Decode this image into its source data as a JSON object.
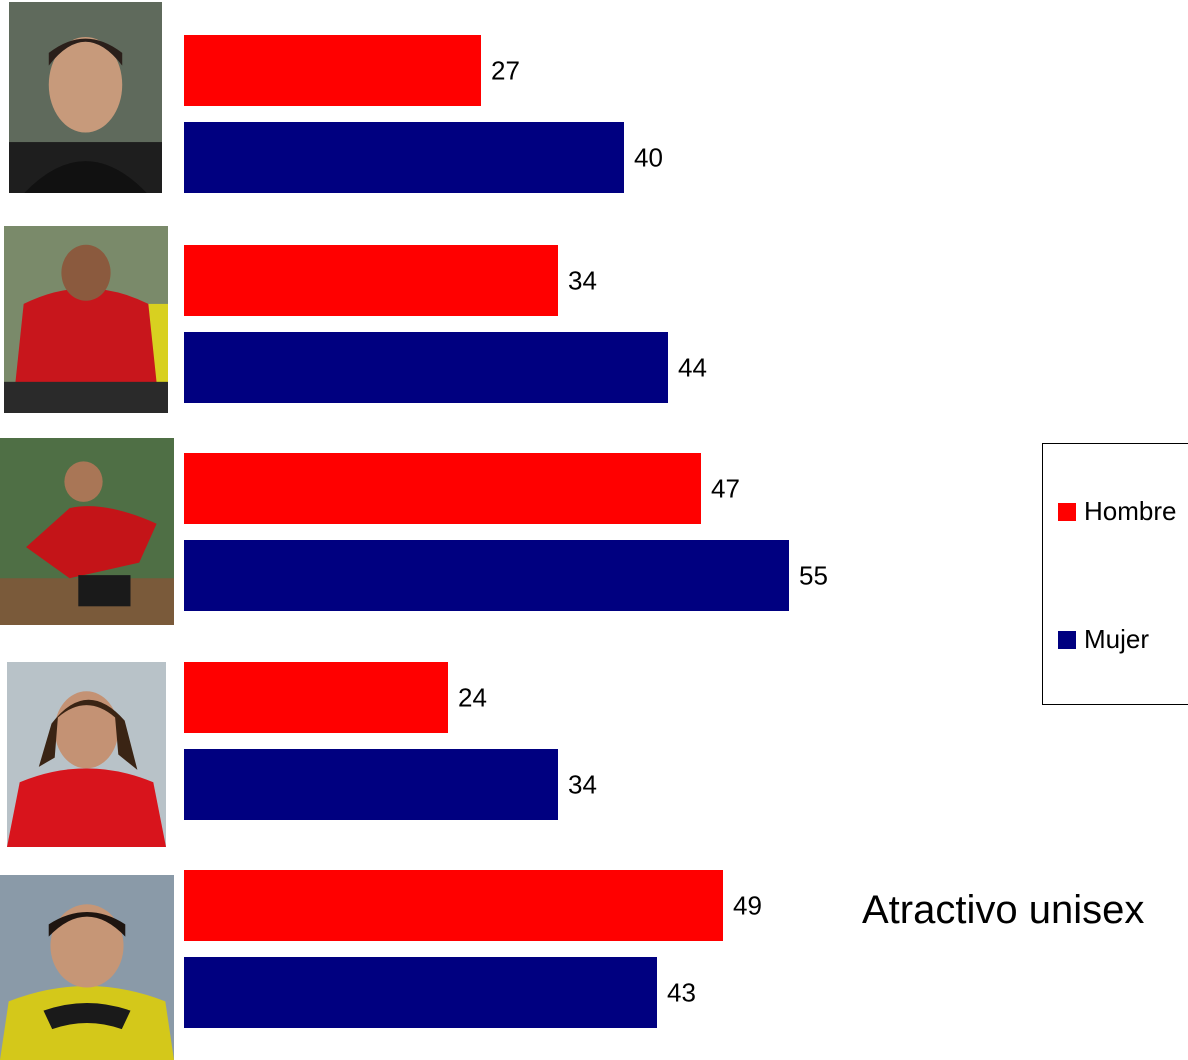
{
  "chart_data": {
    "type": "bar",
    "orientation": "horizontal",
    "categories": [
      "",
      "",
      "",
      "",
      ""
    ],
    "series": [
      {
        "name": "Hombre",
        "color": "#ff0000",
        "values": [
          27,
          34,
          47,
          24,
          49
        ]
      },
      {
        "name": "Mujer",
        "color": "#000080",
        "values": [
          40,
          44,
          55,
          34,
          43
        ]
      }
    ],
    "xlim": [
      0,
      100
    ],
    "grid": false,
    "legend_position": "right",
    "data_labels": true
  },
  "caption": "Atractivo unisex",
  "photos": [
    {
      "icon": "player-photo-icon"
    },
    {
      "icon": "player-photo-icon"
    },
    {
      "icon": "player-photo-icon"
    },
    {
      "icon": "player-photo-icon"
    },
    {
      "icon": "player-photo-icon"
    }
  ]
}
